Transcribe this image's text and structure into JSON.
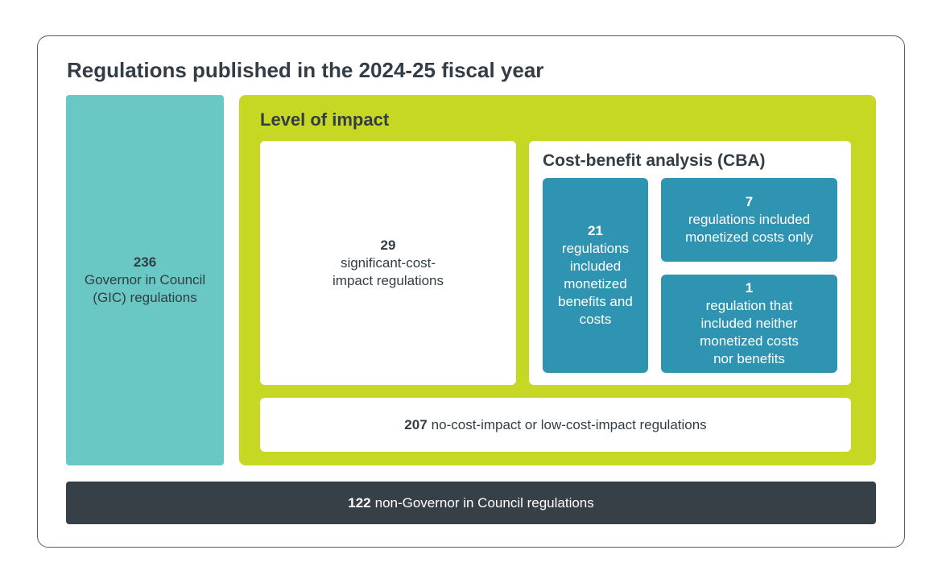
{
  "title": "Regulations published in the 2024-25 fiscal year",
  "gic": {
    "count": "236",
    "label_line1": "Governor in Council",
    "label_line2": "(GIC) regulations"
  },
  "impact": {
    "heading": "Level of impact",
    "significant": {
      "count": "29",
      "line1": "significant-cost-",
      "line2": "impact regulations"
    },
    "low": {
      "count": "207",
      "label": "no-cost-impact or low-cost-impact regulations"
    }
  },
  "cba": {
    "heading": "Cost-benefit analysis (CBA)",
    "benefits_and_costs": {
      "count": "21",
      "lines": [
        "regulations",
        "included",
        "monetized",
        "benefits and",
        "costs"
      ]
    },
    "costs_only": {
      "count": "7",
      "lines": [
        "regulations included",
        "monetized costs only"
      ]
    },
    "neither": {
      "count": "1",
      "lines": [
        "regulation that",
        "included neither",
        "monetized costs",
        "nor benefits"
      ]
    }
  },
  "non_gic": {
    "count": "122",
    "label": "non-Governor in Council regulations"
  },
  "colors": {
    "gic": "#69c7c4",
    "impact": "#c6d823",
    "cba_boxes": "#2f94b2",
    "non_gic": "#373f47",
    "text": "#333d45"
  }
}
